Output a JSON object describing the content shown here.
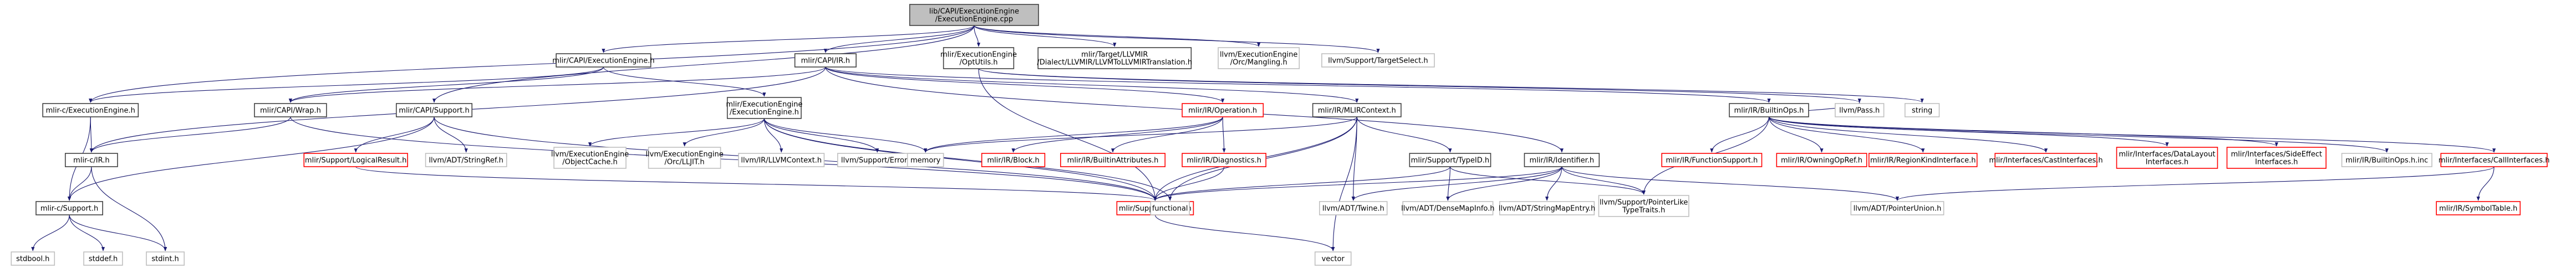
{
  "title": "lib/CAPI/ExecutionEngine/ExecutionEngine.cpp",
  "colors": {
    "root_fill": "#bfbfbf",
    "root_stroke": "#404040",
    "node_stroke": "#404040",
    "node_fill": "#ffffff",
    "missing_stroke": "#bfbfbf",
    "error_stroke": "#ff0000",
    "edge": "#191970"
  },
  "nodes": [
    {
      "id": "root",
      "kind": "root",
      "lines": [
        "lib/CAPI/ExecutionEngine",
        "/ExecutionEngine.cpp"
      ]
    },
    {
      "id": "capi_ee",
      "kind": "normal",
      "lines": [
        "mlir/CAPI/ExecutionEngine.h"
      ]
    },
    {
      "id": "capi_ir",
      "kind": "normal",
      "lines": [
        "mlir/CAPI/IR.h"
      ]
    },
    {
      "id": "ee_optutils",
      "kind": "normal",
      "lines": [
        "mlir/ExecutionEngine",
        "/OptUtils.h"
      ]
    },
    {
      "id": "target_llvmir",
      "kind": "normal",
      "lines": [
        "mlir/Target/LLVMIR",
        "/Dialect/LLVMIR/LLVMToLLVMIRTranslation.h"
      ]
    },
    {
      "id": "orc_mangling",
      "kind": "missing",
      "lines": [
        "llvm/ExecutionEngine",
        "/Orc/Mangling.h"
      ]
    },
    {
      "id": "target_select",
      "kind": "missing",
      "lines": [
        "llvm/Support/TargetSelect.h"
      ]
    },
    {
      "id": "c_ee",
      "kind": "normal",
      "lines": [
        "mlir-c/ExecutionEngine.h"
      ]
    },
    {
      "id": "capi_wrap",
      "kind": "normal",
      "lines": [
        "mlir/CAPI/Wrap.h"
      ]
    },
    {
      "id": "capi_support",
      "kind": "normal",
      "lines": [
        "mlir/CAPI/Support.h"
      ]
    },
    {
      "id": "ee_ee",
      "kind": "normal",
      "lines": [
        "mlir/ExecutionEngine",
        "/ExecutionEngine.h"
      ]
    },
    {
      "id": "ir_operation",
      "kind": "error",
      "lines": [
        "mlir/IR/Operation.h"
      ]
    },
    {
      "id": "ir_mlircontext",
      "kind": "normal",
      "lines": [
        "mlir/IR/MLIRContext.h"
      ]
    },
    {
      "id": "ir_builtinops",
      "kind": "normal",
      "lines": [
        "mlir/IR/BuiltinOps.h"
      ]
    },
    {
      "id": "llvm_pass",
      "kind": "missing",
      "lines": [
        "llvm/Pass.h"
      ]
    },
    {
      "id": "string",
      "kind": "missing",
      "lines": [
        "string"
      ]
    },
    {
      "id": "c_ir",
      "kind": "normal",
      "lines": [
        "mlir-c/IR.h"
      ]
    },
    {
      "id": "c_support",
      "kind": "normal",
      "lines": [
        "mlir-c/Support.h"
      ]
    },
    {
      "id": "logicalresult",
      "kind": "error",
      "lines": [
        "mlir/Support/LogicalResult.h"
      ]
    },
    {
      "id": "stringref",
      "kind": "missing",
      "lines": [
        "llvm/ADT/StringRef.h"
      ]
    },
    {
      "id": "objectcache",
      "kind": "missing",
      "lines": [
        "llvm/ExecutionEngine",
        "/ObjectCache.h"
      ]
    },
    {
      "id": "orc_lljit",
      "kind": "missing",
      "lines": [
        "llvm/ExecutionEngine",
        "/Orc/LLJIT.h"
      ]
    },
    {
      "id": "llvmcontext",
      "kind": "missing",
      "lines": [
        "llvm/IR/LLVMContext.h"
      ]
    },
    {
      "id": "support_error",
      "kind": "missing",
      "lines": [
        "llvm/Support/Error.h"
      ]
    },
    {
      "id": "memory",
      "kind": "missing",
      "lines": [
        "memory"
      ]
    },
    {
      "id": "ir_block",
      "kind": "error",
      "lines": [
        "mlir/IR/Block.h"
      ]
    },
    {
      "id": "ir_builtinattrs",
      "kind": "error",
      "lines": [
        "mlir/IR/BuiltinAttributes.h"
      ]
    },
    {
      "id": "ir_diagnostics",
      "kind": "error",
      "lines": [
        "mlir/IR/Diagnostics.h"
      ]
    },
    {
      "id": "typeid",
      "kind": "normal",
      "lines": [
        "mlir/Support/TypeID.h"
      ]
    },
    {
      "id": "ir_identifier",
      "kind": "normal",
      "lines": [
        "mlir/IR/Identifier.h"
      ]
    },
    {
      "id": "funcsupport",
      "kind": "error",
      "lines": [
        "mlir/IR/FunctionSupport.h"
      ]
    },
    {
      "id": "owningopref",
      "kind": "error",
      "lines": [
        "mlir/IR/OwningOpRef.h"
      ]
    },
    {
      "id": "regionkind",
      "kind": "error",
      "lines": [
        "mlir/IR/RegionKindInterface.h"
      ]
    },
    {
      "id": "castinterfaces",
      "kind": "error",
      "lines": [
        "mlir/Interfaces/CastInterfaces.h"
      ]
    },
    {
      "id": "datalayout",
      "kind": "error",
      "lines": [
        "mlir/Interfaces/DataLayout",
        "Interfaces.h"
      ]
    },
    {
      "id": "sideeffect",
      "kind": "error",
      "lines": [
        "mlir/Interfaces/SideEffect",
        "Interfaces.h"
      ]
    },
    {
      "id": "builtinops_inc",
      "kind": "missing",
      "lines": [
        "mlir/IR/BuiltinOps.h.inc"
      ]
    },
    {
      "id": "callinterfaces",
      "kind": "error",
      "lines": [
        "mlir/Interfaces/CallInterfaces.h"
      ]
    },
    {
      "id": "stdbool",
      "kind": "missing",
      "lines": [
        "stdbool.h"
      ]
    },
    {
      "id": "stddef",
      "kind": "missing",
      "lines": [
        "stddef.h"
      ]
    },
    {
      "id": "stdint",
      "kind": "missing",
      "lines": [
        "stdint.h"
      ]
    },
    {
      "id": "support_llvm",
      "kind": "error",
      "lines": [
        "mlir/Support/LLVM.h"
      ]
    },
    {
      "id": "functional",
      "kind": "missing",
      "lines": [
        "functional"
      ]
    },
    {
      "id": "twine",
      "kind": "missing",
      "lines": [
        "llvm/ADT/Twine.h"
      ]
    },
    {
      "id": "densemapinfo",
      "kind": "missing",
      "lines": [
        "llvm/ADT/DenseMapInfo.h"
      ]
    },
    {
      "id": "stringmapentry",
      "kind": "missing",
      "lines": [
        "llvm/ADT/StringMapEntry.h"
      ]
    },
    {
      "id": "pointerlike",
      "kind": "missing",
      "lines": [
        "llvm/Support/PointerLike",
        "TypeTraits.h"
      ]
    },
    {
      "id": "pointerunion",
      "kind": "missing",
      "lines": [
        "llvm/ADT/PointerUnion.h"
      ]
    },
    {
      "id": "symboltable",
      "kind": "error",
      "lines": [
        "mlir/IR/SymbolTable.h"
      ]
    },
    {
      "id": "vector",
      "kind": "missing",
      "lines": [
        "vector"
      ]
    }
  ],
  "edges": [
    [
      "root",
      "capi_ee"
    ],
    [
      "root",
      "capi_ir"
    ],
    [
      "root",
      "ee_optutils"
    ],
    [
      "root",
      "target_llvmir"
    ],
    [
      "root",
      "orc_mangling"
    ],
    [
      "root",
      "target_select"
    ],
    [
      "root",
      "c_ee"
    ],
    [
      "root",
      "capi_support"
    ],
    [
      "capi_ee",
      "c_ee"
    ],
    [
      "capi_ee",
      "capi_wrap"
    ],
    [
      "capi_ee",
      "ee_ee"
    ],
    [
      "capi_ir",
      "c_ir"
    ],
    [
      "capi_ir",
      "capi_wrap"
    ],
    [
      "capi_ir",
      "ir_operation"
    ],
    [
      "capi_ir",
      "ir_mlircontext"
    ],
    [
      "capi_ir",
      "ir_builtinops"
    ],
    [
      "capi_ir",
      "ir_identifier"
    ],
    [
      "ee_optutils",
      "llvm_pass"
    ],
    [
      "ee_optutils",
      "string"
    ],
    [
      "ee_optutils",
      "support_llvm"
    ],
    [
      "c_ee",
      "c_ir"
    ],
    [
      "c_ee",
      "c_support"
    ],
    [
      "capi_wrap",
      "c_ir"
    ],
    [
      "capi_wrap",
      "support_llvm"
    ],
    [
      "capi_support",
      "c_support"
    ],
    [
      "capi_support",
      "logicalresult"
    ],
    [
      "capi_support",
      "stringref"
    ],
    [
      "capi_support",
      "support_llvm"
    ],
    [
      "ee_ee",
      "objectcache"
    ],
    [
      "ee_ee",
      "orc_lljit"
    ],
    [
      "ee_ee",
      "llvmcontext"
    ],
    [
      "ee_ee",
      "support_error"
    ],
    [
      "ee_ee",
      "memory"
    ],
    [
      "ee_ee",
      "support_llvm"
    ],
    [
      "ee_ee",
      "functional"
    ],
    [
      "ir_operation",
      "ir_block"
    ],
    [
      "ir_operation",
      "ir_builtinattrs"
    ],
    [
      "ir_operation",
      "ir_diagnostics"
    ],
    [
      "ir_operation",
      "memory"
    ],
    [
      "ir_mlircontext",
      "memory"
    ],
    [
      "ir_mlircontext",
      "typeid"
    ],
    [
      "ir_mlircontext",
      "support_llvm"
    ],
    [
      "ir_mlircontext",
      "functional"
    ],
    [
      "ir_mlircontext",
      "twine"
    ],
    [
      "ir_mlircontext",
      "vector"
    ],
    [
      "ir_builtinops",
      "funcsupport"
    ],
    [
      "ir_builtinops",
      "owningopref"
    ],
    [
      "ir_builtinops",
      "regionkind"
    ],
    [
      "ir_builtinops",
      "castinterfaces"
    ],
    [
      "ir_builtinops",
      "datalayout"
    ],
    [
      "ir_builtinops",
      "sideeffect"
    ],
    [
      "ir_builtinops",
      "builtinops_inc"
    ],
    [
      "ir_builtinops",
      "callinterfaces"
    ],
    [
      "ir_builtinops",
      "pointerlike"
    ],
    [
      "ir_builtinops",
      "llvm_pass"
    ],
    [
      "c_ir",
      "c_support"
    ],
    [
      "c_ir",
      "stdint"
    ],
    [
      "c_support",
      "stdbool"
    ],
    [
      "c_support",
      "stddef"
    ],
    [
      "c_support",
      "stdint"
    ],
    [
      "logicalresult",
      "support_llvm"
    ],
    [
      "ir_diagnostics",
      "support_llvm"
    ],
    [
      "typeid",
      "support_llvm"
    ],
    [
      "typeid",
      "densemapinfo"
    ],
    [
      "typeid",
      "pointerlike"
    ],
    [
      "ir_identifier",
      "support_llvm"
    ],
    [
      "ir_identifier",
      "densemapinfo"
    ],
    [
      "ir_identifier",
      "stringmapentry"
    ],
    [
      "ir_identifier",
      "pointerlike"
    ],
    [
      "ir_identifier",
      "pointerunion"
    ],
    [
      "ir_identifier",
      "twine"
    ],
    [
      "callinterfaces",
      "symboltable"
    ],
    [
      "callinterfaces",
      "pointerunion"
    ],
    [
      "support_llvm",
      "vector"
    ]
  ]
}
